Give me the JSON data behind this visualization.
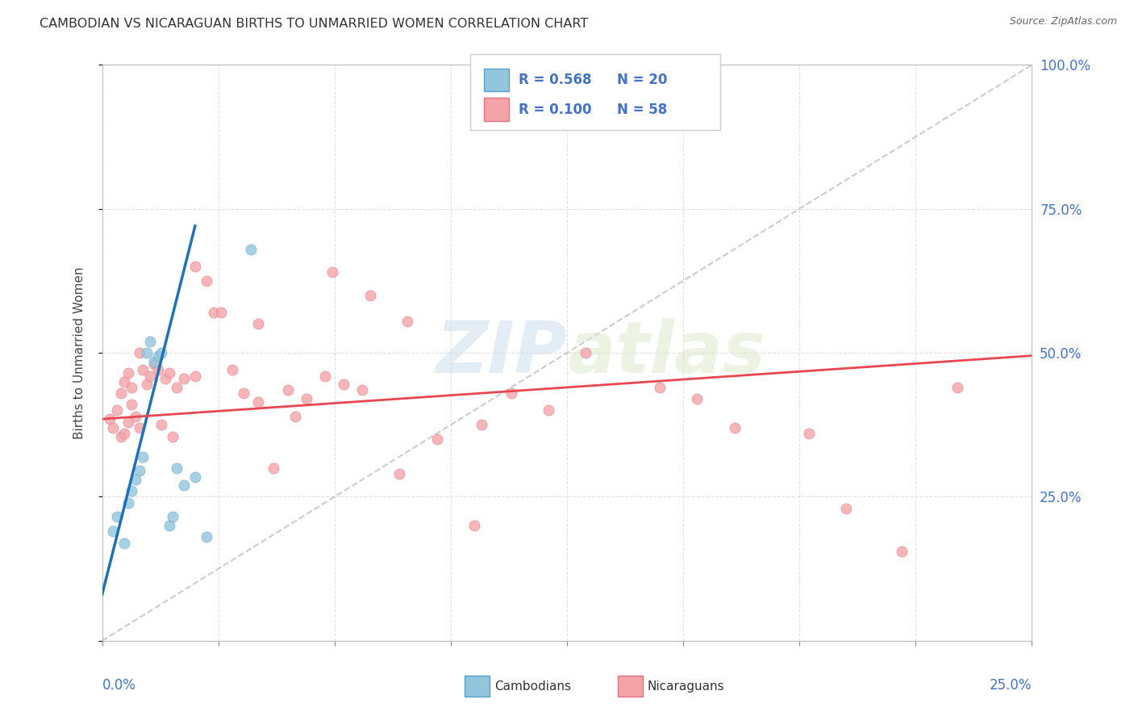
{
  "title": "CAMBODIAN VS NICARAGUAN BIRTHS TO UNMARRIED WOMEN CORRELATION CHART",
  "source": "Source: ZipAtlas.com",
  "ylabel": "Births to Unmarried Women",
  "xlim": [
    0.0,
    0.25
  ],
  "ylim": [
    0.0,
    1.0
  ],
  "blue_scatter_color": "#92c5de",
  "blue_scatter_edge": "#5a9fc7",
  "pink_scatter_color": "#f4a3a8",
  "pink_scatter_edge": "#e07580",
  "blue_line_color": "#2171b5",
  "pink_line_color": "#e8474f",
  "diag_line_color": "#bbbbbb",
  "axis_label_color": "#4472c4",
  "title_color": "#333333",
  "source_color": "#666666",
  "watermark_color": "#d0d0d0",
  "grid_color": "#dddddd",
  "legend_R1": "R = 0.568",
  "legend_N1": "N = 20",
  "legend_R2": "R = 0.100",
  "legend_N2": "N = 58",
  "blue_line_x": [
    0.0,
    0.025
  ],
  "blue_line_y": [
    0.08,
    0.72
  ],
  "pink_line_x": [
    0.0,
    0.25
  ],
  "pink_line_y": [
    0.385,
    0.495
  ],
  "diag_line_x": [
    0.0,
    0.25
  ],
  "diag_line_y": [
    0.0,
    1.0
  ],
  "cam_x": [
    0.003,
    0.004,
    0.006,
    0.007,
    0.008,
    0.009,
    0.01,
    0.011,
    0.012,
    0.013,
    0.014,
    0.015,
    0.016,
    0.018,
    0.019,
    0.02,
    0.022,
    0.025,
    0.028,
    0.04
  ],
  "cam_y": [
    0.19,
    0.215,
    0.17,
    0.24,
    0.26,
    0.28,
    0.295,
    0.32,
    0.5,
    0.52,
    0.485,
    0.495,
    0.5,
    0.2,
    0.215,
    0.3,
    0.27,
    0.285,
    0.18,
    0.68
  ],
  "nic_x": [
    0.002,
    0.003,
    0.004,
    0.005,
    0.005,
    0.006,
    0.006,
    0.007,
    0.007,
    0.008,
    0.008,
    0.009,
    0.01,
    0.01,
    0.011,
    0.012,
    0.013,
    0.014,
    0.015,
    0.016,
    0.017,
    0.018,
    0.019,
    0.02,
    0.022,
    0.025,
    0.028,
    0.03,
    0.035,
    0.038,
    0.042,
    0.046,
    0.05,
    0.055,
    0.06,
    0.065,
    0.07,
    0.08,
    0.09,
    0.1,
    0.11,
    0.12,
    0.13,
    0.15,
    0.16,
    0.17,
    0.19,
    0.2,
    0.215,
    0.23,
    0.025,
    0.032,
    0.042,
    0.052,
    0.062,
    0.072,
    0.082,
    0.102
  ],
  "nic_y": [
    0.385,
    0.37,
    0.4,
    0.43,
    0.355,
    0.45,
    0.36,
    0.465,
    0.38,
    0.44,
    0.41,
    0.39,
    0.37,
    0.5,
    0.47,
    0.445,
    0.46,
    0.48,
    0.47,
    0.375,
    0.455,
    0.465,
    0.355,
    0.44,
    0.455,
    0.46,
    0.625,
    0.57,
    0.47,
    0.43,
    0.55,
    0.3,
    0.435,
    0.42,
    0.46,
    0.445,
    0.435,
    0.29,
    0.35,
    0.2,
    0.43,
    0.4,
    0.5,
    0.44,
    0.42,
    0.37,
    0.36,
    0.23,
    0.155,
    0.44,
    0.65,
    0.57,
    0.415,
    0.39,
    0.64,
    0.6,
    0.555,
    0.375
  ]
}
